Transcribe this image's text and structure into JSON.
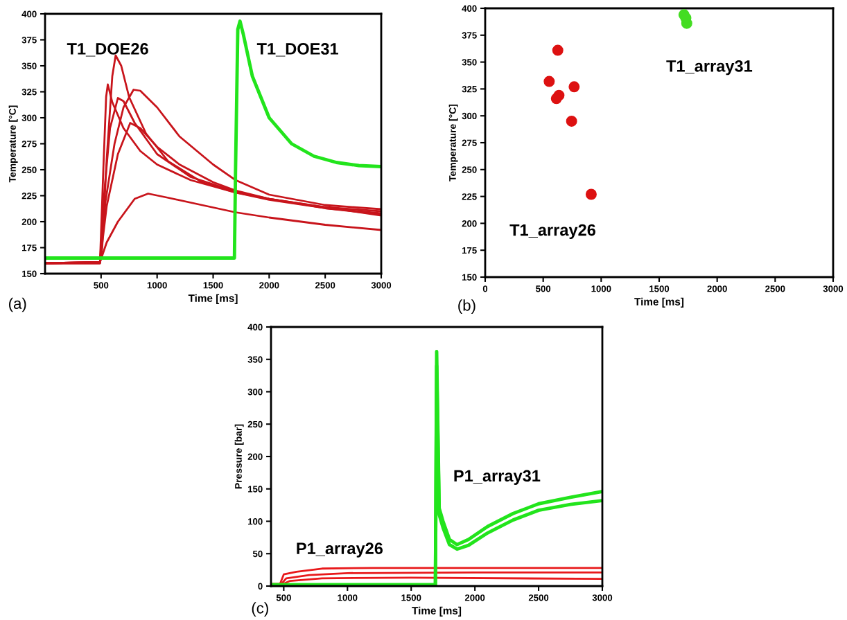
{
  "chart_data": [
    {
      "type": "line",
      "xlabel": "Time [ms]",
      "ylabel": "Temperature [°C]",
      "xlim": [
        0,
        3000
      ],
      "xticks": [
        500,
        1000,
        1500,
        2000,
        2500,
        3000
      ],
      "ylim": [
        150,
        400
      ],
      "yticks": [
        150,
        175,
        200,
        225,
        250,
        275,
        300,
        325,
        350,
        375,
        400
      ],
      "annotations": [
        "T1_DOE26",
        "T1_DOE31",
        "(a)"
      ],
      "series": [
        {
          "color": "#c8141b",
          "x": [
            0,
            490,
            510,
            550,
            600,
            630,
            680,
            750,
            900,
            1100,
            1400,
            1700,
            2000,
            2500,
            3000
          ],
          "values": [
            160,
            160,
            175,
            260,
            340,
            360,
            350,
            320,
            285,
            258,
            238,
            228,
            222,
            213,
            207
          ]
        },
        {
          "color": "#c8141b",
          "x": [
            0,
            490,
            520,
            545,
            560,
            600,
            700,
            850,
            1000,
            1300,
            1700,
            2000,
            2500,
            3000
          ],
          "values": [
            160,
            160,
            250,
            320,
            332,
            315,
            290,
            268,
            255,
            240,
            228,
            221,
            213,
            208
          ]
        },
        {
          "color": "#c8141b",
          "x": [
            0,
            490,
            530,
            580,
            650,
            700,
            800,
            1000,
            1300,
            1700,
            2000,
            2500,
            3000
          ],
          "values": [
            160,
            161,
            230,
            290,
            319,
            316,
            295,
            265,
            243,
            229,
            222,
            214,
            210
          ]
        },
        {
          "color": "#c8141b",
          "x": [
            0,
            490,
            540,
            620,
            700,
            790,
            850,
            1000,
            1200,
            1500,
            1700,
            2000,
            2500,
            3000
          ],
          "values": [
            160,
            161,
            220,
            275,
            310,
            327,
            326,
            310,
            282,
            255,
            240,
            226,
            216,
            212
          ]
        },
        {
          "color": "#c8141b",
          "x": [
            0,
            490,
            550,
            650,
            760,
            850,
            1000,
            1200,
            1500,
            1700,
            2000,
            2500,
            3000
          ],
          "values": [
            160,
            161,
            215,
            265,
            295,
            290,
            272,
            255,
            238,
            230,
            222,
            214,
            206
          ]
        },
        {
          "color": "#c8141b",
          "x": [
            0,
            490,
            550,
            650,
            800,
            920,
            1100,
            1400,
            1700,
            2000,
            2500,
            3000
          ],
          "values": [
            160,
            161,
            180,
            200,
            222,
            227,
            223,
            216,
            209,
            204,
            197,
            192
          ]
        },
        {
          "color": "#22e41c",
          "x": [
            0,
            1690,
            1700,
            1720,
            1740,
            1770,
            1850,
            2000,
            2200,
            2400,
            2600,
            2800,
            3000
          ],
          "values": [
            165,
            165,
            250,
            385,
            393,
            380,
            340,
            300,
            275,
            263,
            257,
            254,
            253
          ]
        }
      ]
    },
    {
      "type": "scatter",
      "marker": "circle",
      "xlabel": "Time [ms]",
      "ylabel": "Temperature [°C]",
      "xlim": [
        0,
        3000
      ],
      "xticks": [
        0,
        500,
        1000,
        1500,
        2000,
        2500,
        3000
      ],
      "ylim": [
        150,
        400
      ],
      "yticks": [
        150,
        175,
        200,
        225,
        250,
        275,
        300,
        325,
        350,
        375,
        400
      ],
      "annotations": [
        "T1_array31",
        "T1_array26",
        "(b)"
      ],
      "series": [
        {
          "color": "#dd1111",
          "x": [
            626,
            552,
            767,
            636,
            614,
            745,
            914
          ],
          "values": [
            361,
            332,
            327,
            319,
            316,
            295,
            227
          ]
        },
        {
          "color": "#44dd22",
          "x": [
            1714,
            1738,
            1730
          ],
          "values": [
            394,
            386,
            391
          ]
        }
      ]
    },
    {
      "type": "line",
      "xlabel": "Time [ms]",
      "ylabel": "Pressure [bar]",
      "xlim": [
        400,
        3000
      ],
      "xticks": [
        500,
        1000,
        1500,
        2000,
        2500,
        3000
      ],
      "ylim": [
        0,
        400
      ],
      "yticks": [
        0,
        50,
        100,
        150,
        200,
        250,
        300,
        350,
        400
      ],
      "annotations": [
        "P1_array31",
        "P1_array26",
        "(c)"
      ],
      "series": [
        {
          "color": "#e8191b",
          "x": [
            400,
            470,
            500,
            600,
            800,
            1200,
            2000,
            3000
          ],
          "values": [
            3,
            3,
            18,
            22,
            27,
            28,
            28,
            28
          ]
        },
        {
          "color": "#e8191b",
          "x": [
            400,
            480,
            520,
            700,
            1000,
            2000,
            3000
          ],
          "values": [
            3,
            3,
            12,
            17,
            20,
            21,
            21
          ]
        },
        {
          "color": "#e8191b",
          "x": [
            400,
            490,
            550,
            800,
            1500,
            3000
          ],
          "values": [
            3,
            3,
            8,
            12,
            13,
            11
          ]
        },
        {
          "color": "#22e41c",
          "x": [
            400,
            1690,
            1700,
            1705,
            1720,
            1750,
            1800,
            1860,
            1950,
            2100,
            2300,
            2500,
            2750,
            3000
          ],
          "values": [
            2,
            2,
            362,
            300,
            120,
            100,
            72,
            64,
            72,
            92,
            112,
            127,
            137,
            146
          ]
        },
        {
          "color": "#22e41c",
          "x": [
            400,
            1690,
            1700,
            1705,
            1720,
            1750,
            1800,
            1860,
            1950,
            2100,
            2300,
            2500,
            2750,
            3000
          ],
          "values": [
            2,
            2,
            340,
            280,
            110,
            90,
            64,
            57,
            63,
            82,
            102,
            117,
            126,
            132
          ]
        }
      ]
    }
  ]
}
